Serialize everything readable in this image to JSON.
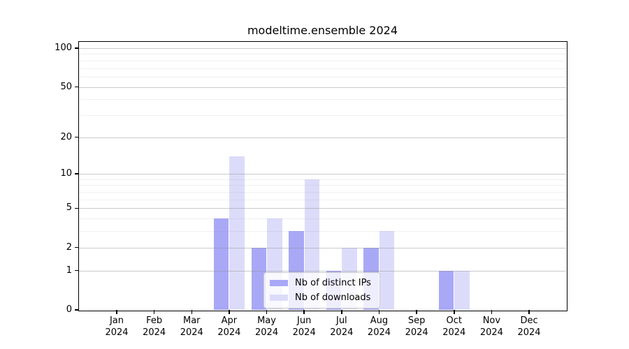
{
  "chart_data": {
    "type": "bar",
    "title": "modeltime.ensemble 2024",
    "year_label": "2024",
    "categories": [
      "Jan",
      "Feb",
      "Mar",
      "Apr",
      "May",
      "Jun",
      "Jul",
      "Aug",
      "Sep",
      "Oct",
      "Nov",
      "Dec"
    ],
    "series": [
      {
        "name": "Nb of distinct IPs",
        "color": "#a8a8f7",
        "values": [
          0,
          0,
          0,
          4,
          2,
          3,
          1,
          2,
          0,
          1,
          0,
          0
        ]
      },
      {
        "name": "Nb of downloads",
        "color": "#dcdcfa",
        "values": [
          0,
          0,
          0,
          14,
          4,
          9,
          2,
          3,
          0,
          1,
          0,
          0
        ]
      }
    ],
    "yscale": "log1p",
    "ylim": [
      0,
      115
    ],
    "yticks": [
      0,
      1,
      2,
      5,
      10,
      20,
      50,
      100
    ],
    "minor_gridlines": [
      3,
      4,
      6,
      7,
      8,
      9,
      30,
      40,
      60,
      70,
      80,
      90
    ],
    "grid": "horizontal-only",
    "legend_position": "bottom-center"
  },
  "colors": {
    "background": "#ffffff",
    "axis_line": "#000000",
    "text": "#000000",
    "major_grid_rgba": "rgba(140,140,140,0.45)",
    "minor_grid_rgba": "rgba(140,140,140,0.13)",
    "bar_distinct_ips": "#a8a8f7",
    "bar_downloads": "#dcdcfa",
    "legend_border": "#cccccc",
    "legend_background": "rgba(255,255,255,0.8)"
  }
}
